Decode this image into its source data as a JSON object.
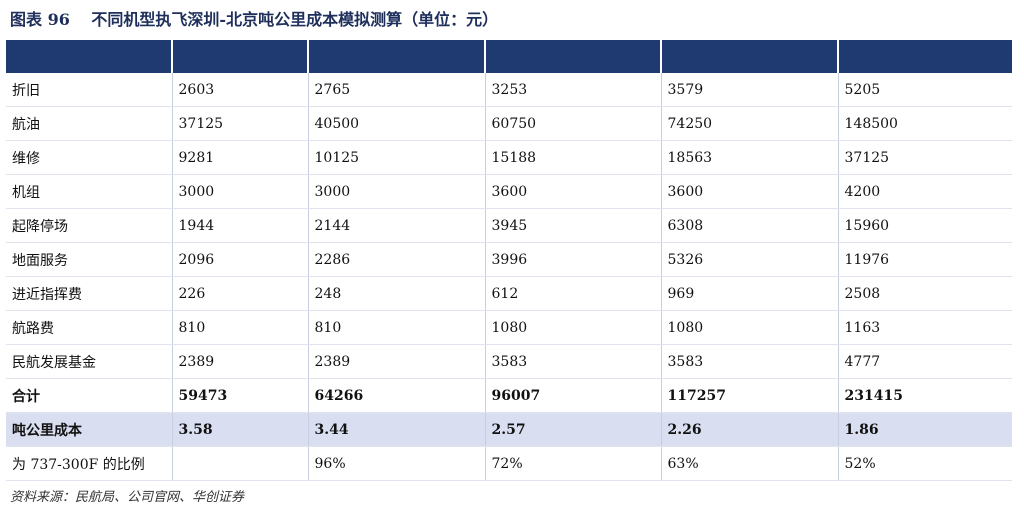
{
  "title": {
    "figure": "图表 96",
    "text": "不同机型执飞深圳-北京吨公里成本模拟测算（单位：元）"
  },
  "table": {
    "rows": [
      {
        "label": "折旧",
        "values": [
          "2603",
          "2765",
          "3253",
          "3579",
          "5205"
        ]
      },
      {
        "label": "航油",
        "values": [
          "37125",
          "40500",
          "60750",
          "74250",
          "148500"
        ]
      },
      {
        "label": "维修",
        "values": [
          "9281",
          "10125",
          "15188",
          "18563",
          "37125"
        ]
      },
      {
        "label": "机组",
        "values": [
          "3000",
          "3000",
          "3600",
          "3600",
          "4200"
        ]
      },
      {
        "label": "起降停场",
        "values": [
          "1944",
          "2144",
          "3945",
          "6308",
          "15960"
        ]
      },
      {
        "label": "地面服务",
        "values": [
          "2096",
          "2286",
          "3996",
          "5326",
          "11976"
        ]
      },
      {
        "label": "进近指挥费",
        "values": [
          "226",
          "248",
          "612",
          "969",
          "2508"
        ]
      },
      {
        "label": "航路费",
        "values": [
          "810",
          "810",
          "1080",
          "1080",
          "1163"
        ]
      },
      {
        "label": "民航发展基金",
        "values": [
          "2389",
          "2389",
          "3583",
          "3583",
          "4777"
        ]
      },
      {
        "label": "合计",
        "values": [
          "59473",
          "64266",
          "96007",
          "117257",
          "231415"
        ]
      },
      {
        "label": "吨公里成本",
        "values": [
          "3.58",
          "3.44",
          "2.57",
          "2.26",
          "1.86"
        ]
      },
      {
        "label": "为 737-300F 的比例",
        "values": [
          "",
          "96%",
          "72%",
          "63%",
          "52%"
        ]
      }
    ]
  },
  "source": "资料来源：民航局、公司官网、华创证券"
}
